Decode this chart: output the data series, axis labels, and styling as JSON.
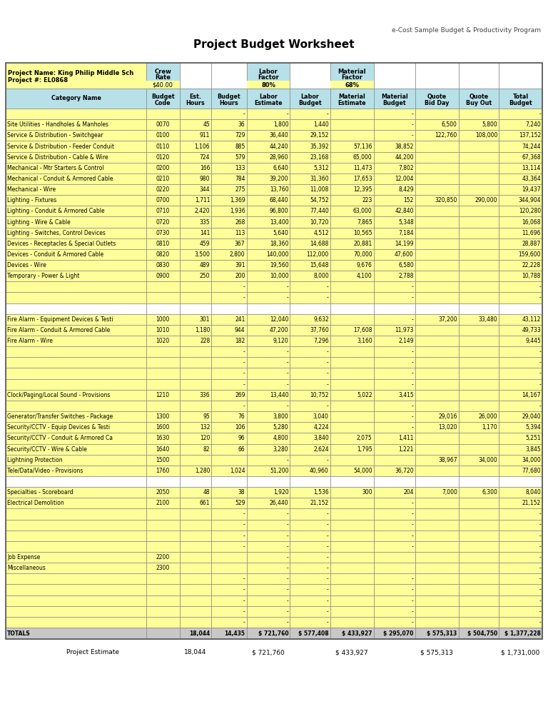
{
  "title": "Project Budget Worksheet",
  "subtitle": "e-Cost Sample Budget & Productivity Program",
  "project_name": "Project Name: King Philip Middle Sch",
  "project_num": "Project #: EL0868",
  "crew_rate": "$40.00",
  "labor_factor": "80%",
  "material_factor": "68%",
  "bg_color": "#FFFFFF",
  "header_bg": "#B8E0E8",
  "yellow_bg": "#FFFF99",
  "grid_color": "#888888",
  "total_row_bg": "#C8C8C8",
  "col_props": [
    0.22,
    0.052,
    0.05,
    0.055,
    0.068,
    0.063,
    0.068,
    0.065,
    0.068,
    0.063,
    0.068
  ],
  "col_headers": [
    "Category Name",
    "Budget\nCode",
    "Est.\nHours",
    "Budget\nHours",
    "Labor\nEstimate",
    "Labor\nBudget",
    "Material\nEstimate",
    "Material\nBudget",
    "Quote\nBid Day",
    "Quote\nBuy Out",
    "Total\nBudget"
  ],
  "rows": [
    [
      "",
      "",
      "",
      "-",
      "-",
      "-",
      "",
      "-",
      "",
      "",
      "-"
    ],
    [
      "Site Utilities - Handholes & Manholes",
      "0070",
      "45",
      "36",
      "1,800",
      "1,440",
      "",
      "-",
      "6,500",
      "5,800",
      "7,240"
    ],
    [
      "Service & Distribution - Switchgear",
      "0100",
      "911",
      "729",
      "36,440",
      "29,152",
      "",
      "-",
      "122,760",
      "108,000",
      "137,152"
    ],
    [
      "Service & Distribution - Feeder Conduit",
      "0110",
      "1,106",
      "885",
      "44,240",
      "35,392",
      "57,136",
      "38,852",
      "",
      "",
      "74,244"
    ],
    [
      "Service & Distribution - Cable & Wire",
      "0120",
      "724",
      "579",
      "28,960",
      "23,168",
      "65,000",
      "44,200",
      "",
      "",
      "67,368"
    ],
    [
      "Mechanical - Mtr Starters & Control",
      "0200",
      "166",
      "133",
      "6,640",
      "5,312",
      "11,473",
      "7,802",
      "",
      "",
      "13,114"
    ],
    [
      "Mechanical - Conduit & Armored Cable",
      "0210",
      "980",
      "784",
      "39,200",
      "31,360",
      "17,653",
      "12,004",
      "",
      "",
      "43,364"
    ],
    [
      "Mechanical - Wire",
      "0220",
      "344",
      "275",
      "13,760",
      "11,008",
      "12,395",
      "8,429",
      "",
      "",
      "19,437"
    ],
    [
      "Lighting - Fixtures",
      "0700",
      "1,711",
      "1,369",
      "68,440",
      "54,752",
      "223",
      "152",
      "320,850",
      "290,000",
      "344,904"
    ],
    [
      "Lighting - Conduit & Armored Cable",
      "0710",
      "2,420",
      "1,936",
      "96,800",
      "77,440",
      "63,000",
      "42,840",
      "",
      "",
      "120,280"
    ],
    [
      "Lighting - Wire & Cable",
      "0720",
      "335",
      "268",
      "13,400",
      "10,720",
      "7,865",
      "5,348",
      "",
      "",
      "16,068"
    ],
    [
      "Lighting - Switches, Control Devices",
      "0730",
      "141",
      "113",
      "5,640",
      "4,512",
      "10,565",
      "7,184",
      "",
      "",
      "11,696"
    ],
    [
      "Devices - Receptacles & Special Outlets",
      "0810",
      "459",
      "367",
      "18,360",
      "14,688",
      "20,881",
      "14,199",
      "",
      "",
      "28,887"
    ],
    [
      "Devices - Conduit & Armored Cable",
      "0820",
      "3,500",
      "2,800",
      "140,000",
      "112,000",
      "70,000",
      "47,600",
      "",
      "",
      "159,600"
    ],
    [
      "Devices - Wire",
      "0830",
      "489",
      "391",
      "19,560",
      "15,648",
      "9,676",
      "6,580",
      "",
      "",
      "22,228"
    ],
    [
      "Temporary - Power & Light",
      "0900",
      "250",
      "200",
      "10,000",
      "8,000",
      "4,100",
      "2,788",
      "",
      "",
      "10,788"
    ],
    [
      "",
      "",
      "",
      "-",
      "-",
      "-",
      "",
      "-",
      "",
      "",
      "-"
    ],
    [
      "",
      "",
      "",
      "-",
      "-",
      "-",
      "",
      "-",
      "",
      "",
      "-"
    ],
    [
      "",
      "",
      "",
      "",
      "",
      "",
      "",
      "",
      "",
      "",
      ""
    ],
    [
      "Fire Alarm - Equipment Devices & Testi",
      "1000",
      "301",
      "241",
      "12,040",
      "9,632",
      "",
      "-",
      "37,200",
      "33,480",
      "43,112"
    ],
    [
      "Fire Alarm - Conduit & Armored Cable",
      "1010",
      "1,180",
      "944",
      "47,200",
      "37,760",
      "17,608",
      "11,973",
      "",
      "",
      "49,733"
    ],
    [
      "Fire Alarm - Wire",
      "1020",
      "228",
      "182",
      "9,120",
      "7,296",
      "3,160",
      "2,149",
      "",
      "",
      "9,445"
    ],
    [
      "",
      "",
      "",
      "-",
      "-",
      "-",
      "",
      "-",
      "",
      "",
      "-"
    ],
    [
      "",
      "",
      "",
      "-",
      "-",
      "-",
      "",
      "-",
      "",
      "",
      "-"
    ],
    [
      "",
      "",
      "",
      "-",
      "-",
      "-",
      "",
      "-",
      "",
      "",
      "-"
    ],
    [
      "",
      "",
      "",
      "-",
      "-",
      "-",
      "",
      "-",
      "",
      "",
      "-"
    ],
    [
      "Clock/Paging/Local Sound - Provisions",
      "1210",
      "336",
      "269",
      "13,440",
      "10,752",
      "5,022",
      "3,415",
      "",
      "",
      "14,167"
    ],
    [
      "",
      "",
      "",
      "-",
      "-",
      "-",
      "",
      "-",
      "",
      "",
      "-"
    ],
    [
      "Generator/Transfer Switches - Package",
      "1300",
      "95",
      "76",
      "3,800",
      "3,040",
      "",
      "-",
      "29,016",
      "26,000",
      "29,040"
    ],
    [
      "Security/CCTV - Equip Devices & Testi",
      "1600",
      "132",
      "106",
      "5,280",
      "4,224",
      "",
      "-",
      "13,020",
      "1,170",
      "5,394"
    ],
    [
      "Security/CCTV - Conduit & Armored Ca",
      "1630",
      "120",
      "96",
      "4,800",
      "3,840",
      "2,075",
      "1,411",
      "",
      "",
      "5,251"
    ],
    [
      "Security/CCTV - Wire & Cable",
      "1640",
      "82",
      "66",
      "3,280",
      "2,624",
      "1,795",
      "1,221",
      "",
      "",
      "3,845"
    ],
    [
      "Lightning Protection",
      "1500",
      "",
      "",
      "-",
      "-",
      "",
      "",
      "38,967",
      "34,000",
      "34,000"
    ],
    [
      "Tele/Data/Video - Provisions",
      "1760",
      "1,280",
      "1,024",
      "51,200",
      "40,960",
      "54,000",
      "36,720",
      "",
      "",
      "77,680"
    ],
    [
      "",
      "",
      "",
      "",
      "",
      "",
      "",
      "",
      "",
      "",
      ""
    ],
    [
      "Specialties - Scoreboard",
      "2050",
      "48",
      "38",
      "1,920",
      "1,536",
      "300",
      "204",
      "7,000",
      "6,300",
      "8,040"
    ],
    [
      "Electrical Demolition",
      "2100",
      "661",
      "529",
      "26,440",
      "21,152",
      "",
      "-",
      "",
      "",
      "21,152"
    ],
    [
      "",
      "",
      "",
      "-",
      "-",
      "-",
      "",
      "-",
      "",
      "",
      "-"
    ],
    [
      "",
      "",
      "",
      "-",
      "-",
      "-",
      "",
      "-",
      "",
      "",
      "-"
    ],
    [
      "",
      "",
      "",
      "-",
      "-",
      "-",
      "",
      "-",
      "",
      "",
      "-"
    ],
    [
      "",
      "",
      "",
      "-",
      "-",
      "-",
      "",
      "-",
      "",
      "",
      "-"
    ],
    [
      "Job Expense",
      "2200",
      "",
      "",
      "-",
      "-",
      "",
      "",
      "",
      "",
      "-"
    ],
    [
      "Miscellaneous",
      "2300",
      "",
      "",
      "-",
      "-",
      "",
      "",
      "",
      "",
      "-"
    ],
    [
      "",
      "",
      "",
      "-",
      "-",
      "-",
      "",
      "-",
      "",
      "",
      "-"
    ],
    [
      "",
      "",
      "",
      "-",
      "-",
      "-",
      "",
      "-",
      "",
      "",
      "-"
    ],
    [
      "",
      "",
      "",
      "-",
      "-",
      "-",
      "",
      "-",
      "",
      "",
      "-"
    ],
    [
      "",
      "",
      "",
      "-",
      "-",
      "-",
      "",
      "-",
      "",
      "",
      "-"
    ],
    [
      "",
      "",
      "",
      "-",
      "-",
      "-",
      "",
      "-",
      "",
      "",
      "-"
    ],
    [
      "TOTALS",
      "",
      "18,044",
      "14,435",
      "$ 721,760",
      "$ 577,408",
      "$ 433,927",
      "$ 295,070",
      "$ 575,313",
      "$ 504,750",
      "$ 1,377,228"
    ]
  ],
  "footer_label": "Project Estimate",
  "footer_vals": {
    "2": "18,044",
    "4": "$ 721,760",
    "6": "$ 433,927",
    "8": "$ 575,313",
    "10": "$ 1,731,000"
  }
}
